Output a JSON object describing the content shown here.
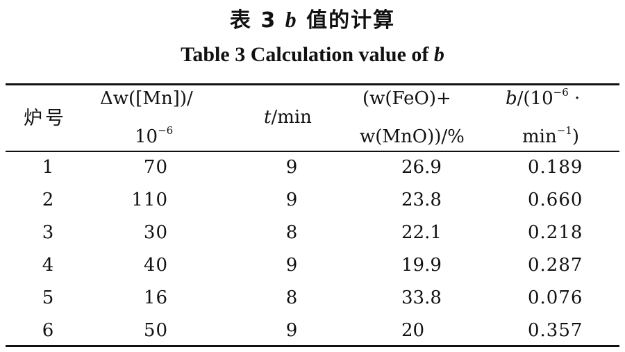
{
  "title": {
    "cn_prefix": "表 3",
    "cn_var": "b",
    "cn_suffix": "值的计算",
    "en_prefix": "Table 3   Calculation value of",
    "en_var": "b"
  },
  "header": {
    "furnace": "炉号",
    "dw_line1": "Δw([Mn])/",
    "dw_line2_base": "10",
    "dw_line2_sup": "−6",
    "time_var": "t",
    "time_unit": "/min",
    "feo_line1": "(w(FeO)+",
    "feo_line2": "w(MnO))/%",
    "b_var": "b",
    "b_line1_pre": "/(10",
    "b_line1_sup": "−6",
    "b_line1_post": " ·",
    "b_line2_base": "min",
    "b_line2_sup": "−1",
    "b_line2_post": ")"
  },
  "rows": [
    {
      "id": "1",
      "dw": "70",
      "t": "9",
      "feo": "26.9",
      "b": "0.189"
    },
    {
      "id": "2",
      "dw": "110",
      "t": "9",
      "feo": "23.8",
      "b": "0.660"
    },
    {
      "id": "3",
      "dw": "30",
      "t": "8",
      "feo": "22.1",
      "b": "0.218"
    },
    {
      "id": "4",
      "dw": "40",
      "t": "9",
      "feo": "19.9",
      "b": "0.287"
    },
    {
      "id": "5",
      "dw": "16",
      "t": "8",
      "feo": "33.8",
      "b": "0.076"
    },
    {
      "id": "6",
      "dw": "50",
      "t": "9",
      "feo": "20",
      "b": "0.357"
    }
  ]
}
